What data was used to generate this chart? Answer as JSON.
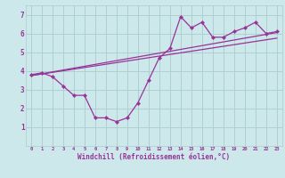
{
  "xlabel": "Windchill (Refroidissement éolien,°C)",
  "x_data": [
    0,
    1,
    2,
    3,
    4,
    5,
    6,
    7,
    8,
    9,
    10,
    11,
    12,
    13,
    14,
    15,
    16,
    17,
    18,
    19,
    20,
    21,
    22,
    23
  ],
  "y_data": [
    3.8,
    3.9,
    3.7,
    3.2,
    2.7,
    2.7,
    1.5,
    1.5,
    1.3,
    1.5,
    2.3,
    3.5,
    4.7,
    5.2,
    6.9,
    6.3,
    6.6,
    5.8,
    5.8,
    6.1,
    6.3,
    6.6,
    6.0,
    6.1
  ],
  "trend1_x": [
    0,
    23
  ],
  "trend1_y": [
    3.75,
    6.05
  ],
  "trend2_x": [
    0,
    23
  ],
  "trend2_y": [
    3.75,
    5.75
  ],
  "line_color": "#993399",
  "bg_color": "#cce8ea",
  "grid_color": "#aacccc",
  "ylim": [
    0,
    7.5
  ],
  "xlim": [
    -0.5,
    23.5
  ],
  "yticks": [
    1,
    2,
    3,
    4,
    5,
    6,
    7
  ],
  "xticks": [
    0,
    1,
    2,
    3,
    4,
    5,
    6,
    7,
    8,
    9,
    10,
    11,
    12,
    13,
    14,
    15,
    16,
    17,
    18,
    19,
    20,
    21,
    22,
    23
  ]
}
